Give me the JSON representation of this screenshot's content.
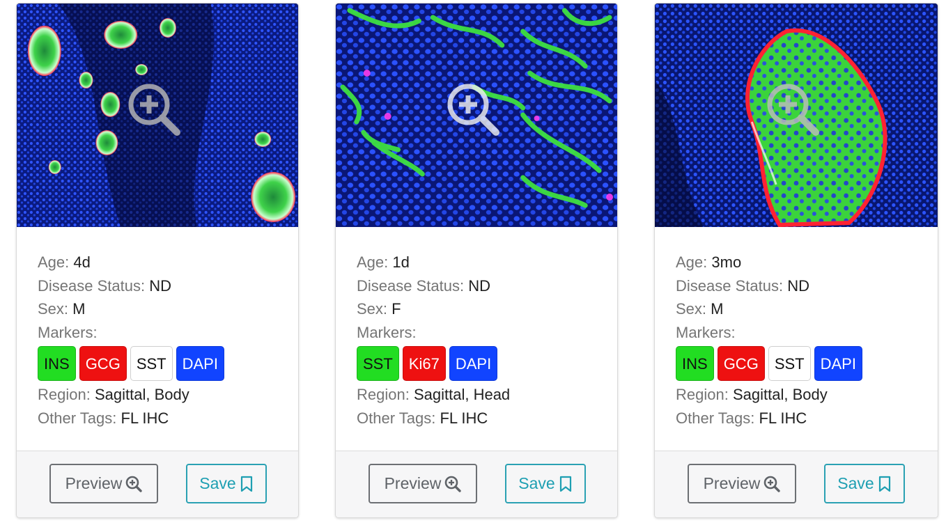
{
  "labels": {
    "age": "Age:",
    "disease_status": "Disease Status:",
    "sex": "Sex:",
    "markers": "Markers:",
    "region": "Region:",
    "other_tags": "Other Tags:"
  },
  "buttons": {
    "preview": "Preview",
    "save": "Save"
  },
  "icons": {
    "overlay": "zoom-in-icon",
    "preview": "magnifier-plus-icon",
    "save": "bookmark-icon"
  },
  "colors": {
    "marker_green": "#22dd22",
    "marker_red": "#ee1111",
    "marker_white": "#ffffff",
    "marker_blue": "#1144ff",
    "save_accent": "#1e9fb2",
    "preview_border": "#6c6f73"
  },
  "cards": [
    {
      "age": "4d",
      "disease_status": "ND",
      "sex": "M",
      "markers": [
        {
          "label": "INS",
          "color": "#22dd22"
        },
        {
          "label": "GCG",
          "color": "#ee1111"
        },
        {
          "label": "SST",
          "color": "#ffffff"
        },
        {
          "label": "DAPI",
          "color": "#1144ff"
        }
      ],
      "region": "Sagittal, Body",
      "other_tags": "FL IHC"
    },
    {
      "age": "1d",
      "disease_status": "ND",
      "sex": "F",
      "markers": [
        {
          "label": "SST",
          "color": "#22dd22"
        },
        {
          "label": "Ki67",
          "color": "#ee1111"
        },
        {
          "label": "DAPI",
          "color": "#1144ff"
        }
      ],
      "region": "Sagittal, Head",
      "other_tags": "FL IHC"
    },
    {
      "age": "3mo",
      "disease_status": "ND",
      "sex": "M",
      "markers": [
        {
          "label": "INS",
          "color": "#22dd22"
        },
        {
          "label": "GCG",
          "color": "#ee1111"
        },
        {
          "label": "SST",
          "color": "#ffffff"
        },
        {
          "label": "DAPI",
          "color": "#1144ff"
        }
      ],
      "region": "Sagittal, Body",
      "other_tags": "FL IHC"
    }
  ]
}
